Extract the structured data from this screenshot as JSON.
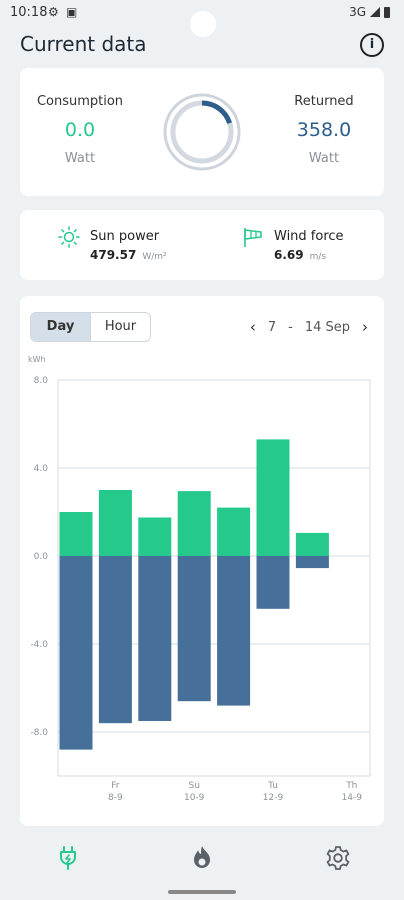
{
  "status": {
    "time": "10:18",
    "network": "3G"
  },
  "header": {
    "title": "Current data",
    "info_label": "i"
  },
  "energy": {
    "consumption": {
      "label": "Consumption",
      "value": "0.0",
      "unit": "Watt"
    },
    "returned": {
      "label": "Returned",
      "value": "358.0",
      "unit": "Watt"
    },
    "ring_fraction": 0.2
  },
  "environment": {
    "sun": {
      "label": "Sun power",
      "value": "479.57",
      "unit": "W/m²",
      "icon": "sun-icon"
    },
    "wind": {
      "label": "Wind force",
      "value": "6.69",
      "unit": "m/s",
      "icon": "windsock-icon"
    }
  },
  "chart_controls": {
    "tabs": [
      "Day",
      "Hour"
    ],
    "active_tab": "Day",
    "range_start": "7",
    "range_sep": "-",
    "range_end": "14 Sep"
  },
  "chart_data": {
    "type": "bar",
    "ylabel": "kWh",
    "ylim": [
      -10,
      8
    ],
    "yticks": [
      "8.0",
      "4.0",
      "0.0",
      "-4.0",
      "-8.0"
    ],
    "yticks_values": [
      8,
      4,
      0,
      -4,
      -8
    ],
    "grid": true,
    "colors": {
      "positive": "#25c98c",
      "negative": "#46709a"
    },
    "series": [
      {
        "name": "",
        "values": [
          2.0,
          3.0,
          1.75,
          2.95,
          2.2,
          5.3,
          1.05
        ]
      },
      {
        "name": "",
        "values": [
          -8.8,
          -7.6,
          -7.5,
          -6.6,
          -6.8,
          -2.4,
          -0.55
        ]
      }
    ],
    "xticks": [
      {
        "day": "Fr",
        "date": "8-9",
        "index": 1
      },
      {
        "day": "Su",
        "date": "10-9",
        "index": 3
      },
      {
        "day": "Tu",
        "date": "12-9",
        "index": 5
      },
      {
        "day": "Th",
        "date": "14-9",
        "index": 7
      }
    ]
  },
  "nav": {
    "items": [
      {
        "icon": "plug-icon",
        "active": true
      },
      {
        "icon": "flame-icon",
        "active": false
      },
      {
        "icon": "gear-icon",
        "active": false
      }
    ]
  }
}
